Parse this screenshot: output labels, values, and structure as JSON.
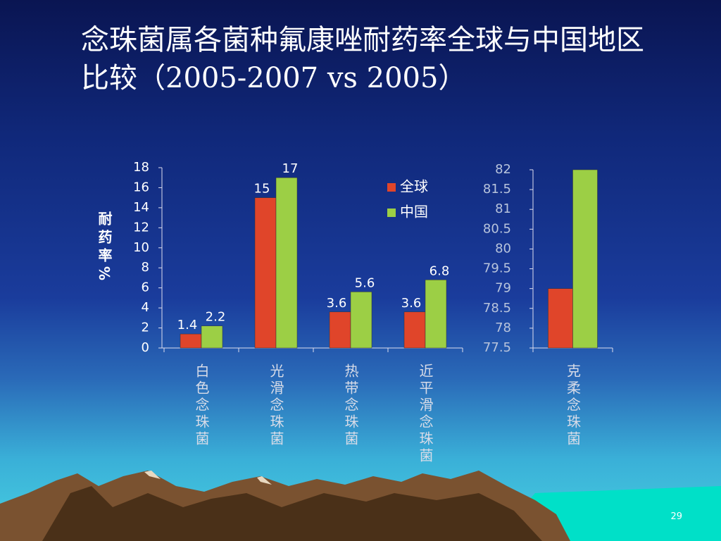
{
  "title": "念珠菌属各菌种氟康唑耐药率全球与中国地区比较（2005-2007 vs 2005）",
  "page_number": "29",
  "chart_data": [
    {
      "type": "bar",
      "ylabel": "耐药率%",
      "categories": [
        "白色念珠菌",
        "光滑念珠菌",
        "热带念珠菌",
        "近平滑念珠菌"
      ],
      "series": [
        {
          "name": "全球",
          "color": "#e0452a",
          "values": [
            1.4,
            15,
            3.6,
            3.6
          ]
        },
        {
          "name": "中国",
          "color": "#9ccf45",
          "values": [
            2.2,
            17,
            5.6,
            6.8
          ]
        }
      ],
      "ylim": [
        0,
        18
      ],
      "yticks": [
        0,
        2,
        4,
        6,
        8,
        10,
        12,
        14,
        16,
        18
      ],
      "legend": "upper right",
      "data_labels": true
    },
    {
      "type": "bar",
      "categories": [
        "克柔念珠菌"
      ],
      "series": [
        {
          "color": "#e0452a",
          "values": [
            79
          ]
        },
        {
          "color": "#9ccf45",
          "values": [
            82
          ]
        }
      ],
      "ylim": [
        77.5,
        82
      ],
      "yticks": [
        77.5,
        78,
        78.5,
        79,
        79.5,
        80,
        80.5,
        81,
        81.5,
        82
      ],
      "data_labels": false
    }
  ]
}
